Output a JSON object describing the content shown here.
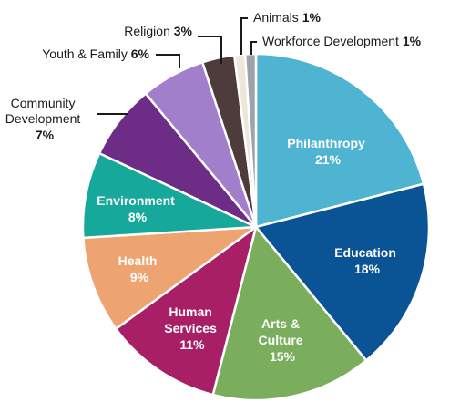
{
  "chart_data": {
    "type": "pie",
    "slices": [
      {
        "label": "Philanthropy",
        "value": 21,
        "value_label": "21%",
        "color": "#4fb3d2"
      },
      {
        "label": "Education",
        "value": 18,
        "value_label": "18%",
        "color": "#0a5496"
      },
      {
        "label": "Arts & Culture",
        "value": 15,
        "value_label": "15%",
        "color": "#7aae5c"
      },
      {
        "label": "Human Services",
        "value": 11,
        "value_label": "11%",
        "color": "#a91f66"
      },
      {
        "label": "Health",
        "value": 9,
        "value_label": "9%",
        "color": "#eda470"
      },
      {
        "label": "Environment",
        "value": 8,
        "value_label": "8%",
        "color": "#16a89a"
      },
      {
        "label": "Community Development",
        "value": 7,
        "value_label": "7%",
        "color": "#6d2d87"
      },
      {
        "label": "Youth & Family",
        "value": 6,
        "value_label": "6%",
        "color": "#a27fcb"
      },
      {
        "label": "Religion",
        "value": 3,
        "value_label": "3%",
        "color": "#4e3b3b"
      },
      {
        "label": "Animals",
        "value": 1,
        "value_label": "1%",
        "color": "#ede7da"
      },
      {
        "label": "Workforce Development",
        "value": 1,
        "value_label": "1%",
        "color": "#9da3aa"
      }
    ]
  }
}
